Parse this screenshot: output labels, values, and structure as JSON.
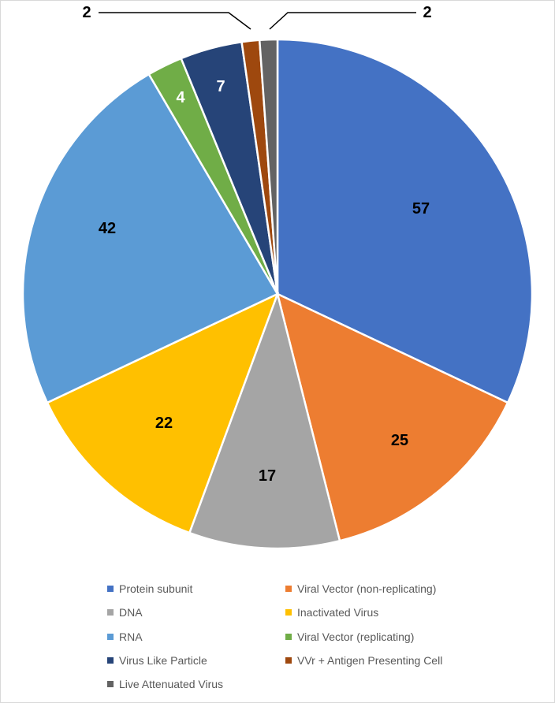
{
  "chart_data": {
    "type": "pie",
    "title": "",
    "start_angle_deg": 0,
    "direction": "clockwise",
    "slices": [
      {
        "label": "Protein subunit",
        "value": 57,
        "color": "#4472C4",
        "data_label": "57"
      },
      {
        "label": "Viral Vector (non-replicating)",
        "value": 25,
        "color": "#ED7D31",
        "data_label": "25"
      },
      {
        "label": "DNA",
        "value": 17,
        "color": "#A5A5A5",
        "data_label": "17"
      },
      {
        "label": "Inactivated Virus",
        "value": 22,
        "color": "#FFC000",
        "data_label": "22"
      },
      {
        "label": "RNA",
        "value": 42,
        "color": "#5B9BD5",
        "data_label": "42"
      },
      {
        "label": "Viral Vector (replicating)",
        "value": 4,
        "color": "#70AD47",
        "data_label": "4"
      },
      {
        "label": "Virus Like Particle",
        "value": 7,
        "color": "#264478",
        "data_label": "7"
      },
      {
        "label": "VVr + Antigen Presenting Cell",
        "value": 2,
        "color": "#9E480E",
        "data_label": "2"
      },
      {
        "label": "Live Attenuated Virus",
        "value": 2,
        "color": "#636363",
        "data_label": "2"
      }
    ],
    "legend_position": "bottom"
  }
}
